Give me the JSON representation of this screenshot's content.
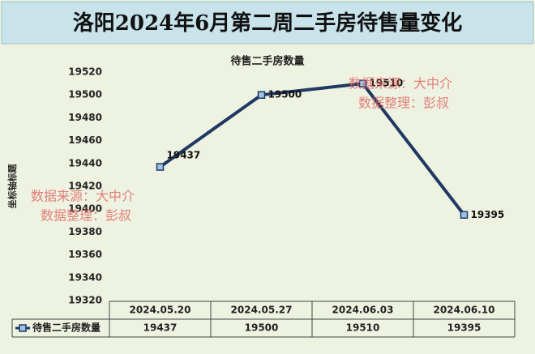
{
  "header": {
    "title": "洛阳2024年6月第二周二手房待售量变化"
  },
  "watermarks": [
    {
      "source": "数据来源：大中介",
      "editor": "数据整理：彭叔"
    },
    {
      "source": "数据来源：大中介",
      "editor": "数据整理：彭叔"
    }
  ],
  "chart_data": {
    "type": "line",
    "title": "待售二手房数量",
    "y_axis_label": "坐标轴标题",
    "categories": [
      "2024.05.20",
      "2024.05.27",
      "2024.06.03",
      "2024.06.10"
    ],
    "series": [
      {
        "name": "待售二手房数量",
        "color": "#1f3864",
        "values": [
          19437,
          19500,
          19510,
          19395
        ]
      }
    ],
    "ylim": [
      19320,
      19520
    ],
    "yticks": [
      19320,
      19340,
      19360,
      19380,
      19400,
      19420,
      19440,
      19460,
      19480,
      19500,
      19520
    ]
  }
}
